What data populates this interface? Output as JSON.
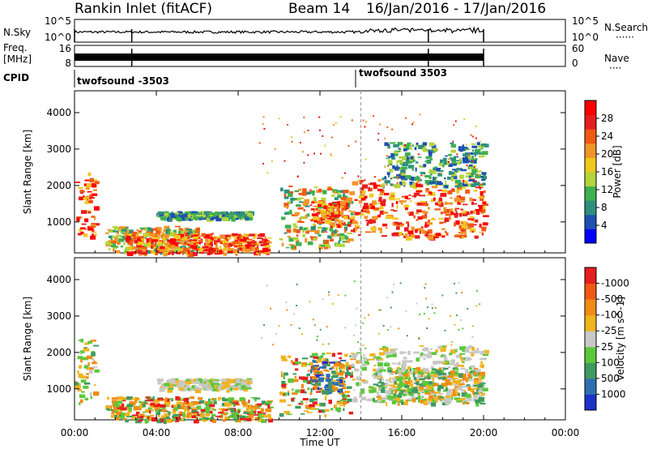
{
  "header": {
    "station": "Rankin Inlet (fitACF)",
    "beam": "Beam 14",
    "date_range": "16/Jan/2016 - 17/Jan/2016"
  },
  "noise_panel": {
    "left_label": "N.Sky",
    "right_label": "N.Search",
    "tick_top": "10^5",
    "tick_bottom": "10^0",
    "right_tick_top": "10^5",
    "right_tick_bottom": "10^0"
  },
  "freq_panel": {
    "left_label_1": "Freq.",
    "left_label_2": "[MHz]",
    "tick_top": "16",
    "tick_bottom": "8",
    "right_label": "Nave",
    "right_tick_top": "60",
    "right_tick_bottom": "0"
  },
  "cpid_panel": {
    "label": "CPID",
    "programs": [
      {
        "name": "twofsound -3503",
        "start_hour": 0
      },
      {
        "name": "twofsound 3503",
        "start_hour": 14
      }
    ]
  },
  "chart_data": [
    {
      "type": "heatmap",
      "name": "power-panel",
      "ylabel": "Slant Range [km]",
      "y_ticks": [
        1000,
        2000,
        3000,
        4000
      ],
      "ylim": [
        150,
        4600
      ],
      "x_ticks": [
        "00:00",
        "04:00",
        "08:00",
        "12:00",
        "16:00",
        "20:00",
        "00:00"
      ],
      "xlim_hours": [
        0,
        24
      ],
      "data_end_hour": 20,
      "colorbar": {
        "label": "Power [dB]",
        "ticks": [
          "4",
          "8",
          "12",
          "16",
          "20",
          "24",
          "28"
        ],
        "colors": [
          "#0000ff",
          "#1f4fb0",
          "#2f8f7f",
          "#3fb04f",
          "#b4d43c",
          "#f0c81e",
          "#f09628",
          "#f05a14",
          "#e61e1e",
          "#ff0000"
        ]
      },
      "regions": [
        {
          "t0": 0.0,
          "t1": 1.0,
          "r0": 600,
          "r1": 2400,
          "level": "high"
        },
        {
          "t0": 1.5,
          "t1": 6.0,
          "r0": 200,
          "r1": 900,
          "level": "mid"
        },
        {
          "t0": 2.5,
          "t1": 9.5,
          "r0": 150,
          "r1": 700,
          "level": "high"
        },
        {
          "t0": 4.0,
          "t1": 8.5,
          "r0": 1100,
          "r1": 1300,
          "level": "low"
        },
        {
          "t0": 10.0,
          "t1": 13.5,
          "r0": 300,
          "r1": 2000,
          "level": "mid"
        },
        {
          "t0": 11.5,
          "t1": 13.5,
          "r0": 900,
          "r1": 1600,
          "level": "high"
        },
        {
          "t0": 13.5,
          "t1": 20.0,
          "r0": 600,
          "r1": 2200,
          "level": "high"
        },
        {
          "t0": 15.0,
          "t1": 20.0,
          "r0": 2000,
          "r1": 3200,
          "level": "low"
        }
      ]
    },
    {
      "type": "heatmap",
      "name": "velocity-panel",
      "ylabel": "Slant Range [km]",
      "y_ticks": [
        1000,
        2000,
        3000,
        4000
      ],
      "ylim": [
        150,
        4600
      ],
      "x_ticks": [
        "00:00",
        "04:00",
        "08:00",
        "12:00",
        "16:00",
        "20:00",
        "00:00"
      ],
      "xlim_hours": [
        0,
        24
      ],
      "xlabel": "Time UT",
      "data_end_hour": 20,
      "colorbar": {
        "label": "Velocity [m s^-1]",
        "ticks": [
          "1000",
          "500",
          "100",
          "25",
          "-25",
          "-100",
          "-500",
          "-1000"
        ],
        "colors": [
          "#1e32c8",
          "#2f6fb0",
          "#3f9a5f",
          "#5cc83c",
          "#c8c8c8",
          "#f0b41e",
          "#f08c14",
          "#f05a14",
          "#e61e1e"
        ]
      },
      "regions": [
        {
          "t0": 0.0,
          "t1": 1.0,
          "r0": 600,
          "r1": 2400,
          "level": "mix"
        },
        {
          "t0": 1.5,
          "t1": 9.5,
          "r0": 150,
          "r1": 800,
          "level": "neg"
        },
        {
          "t0": 4.0,
          "t1": 8.5,
          "r0": 1000,
          "r1": 1300,
          "level": "zero"
        },
        {
          "t0": 10.0,
          "t1": 13.5,
          "r0": 300,
          "r1": 2000,
          "level": "neg"
        },
        {
          "t0": 11.5,
          "t1": 13.0,
          "r0": 900,
          "r1": 1800,
          "level": "pos"
        },
        {
          "t0": 13.5,
          "t1": 20.0,
          "r0": 700,
          "r1": 2200,
          "level": "zero"
        },
        {
          "t0": 14.5,
          "t1": 20.0,
          "r0": 600,
          "r1": 1600,
          "level": "mix"
        }
      ]
    }
  ]
}
